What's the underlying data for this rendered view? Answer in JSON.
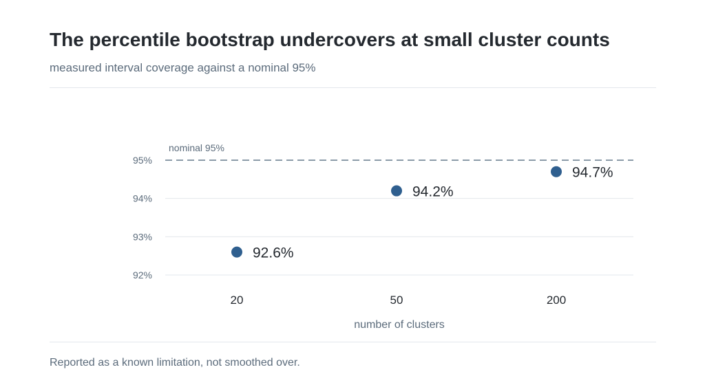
{
  "header": {
    "title": "The percentile bootstrap undercovers at small cluster counts",
    "subtitle": "measured interval coverage against a nominal 95%"
  },
  "footer": {
    "note": "Reported as a known limitation, not smoothed over."
  },
  "colors": {
    "point": "#2f5f8f",
    "reference_line": "#8a9aa8",
    "grid": "#e3e7ec",
    "tick_text": "#5b6b7b",
    "label_text": "#24292f"
  },
  "chart_data": {
    "type": "scatter",
    "title": "The percentile bootstrap undercovers at small cluster counts",
    "subtitle": "measured interval coverage against a nominal 95%",
    "xlabel": "number of clusters",
    "ylabel": "",
    "categories": [
      "20",
      "50",
      "200"
    ],
    "values": [
      92.6,
      94.2,
      94.7
    ],
    "data_labels": [
      "92.6%",
      "94.2%",
      "94.7%"
    ],
    "ylim": [
      92,
      95
    ],
    "yticks": [
      92,
      93,
      94,
      95
    ],
    "ytick_labels": [
      "92%",
      "93%",
      "94%",
      "95%"
    ],
    "grid": true,
    "reference_line": {
      "value": 95,
      "label": "nominal 95%",
      "style": "dashed"
    },
    "legend": "none"
  }
}
